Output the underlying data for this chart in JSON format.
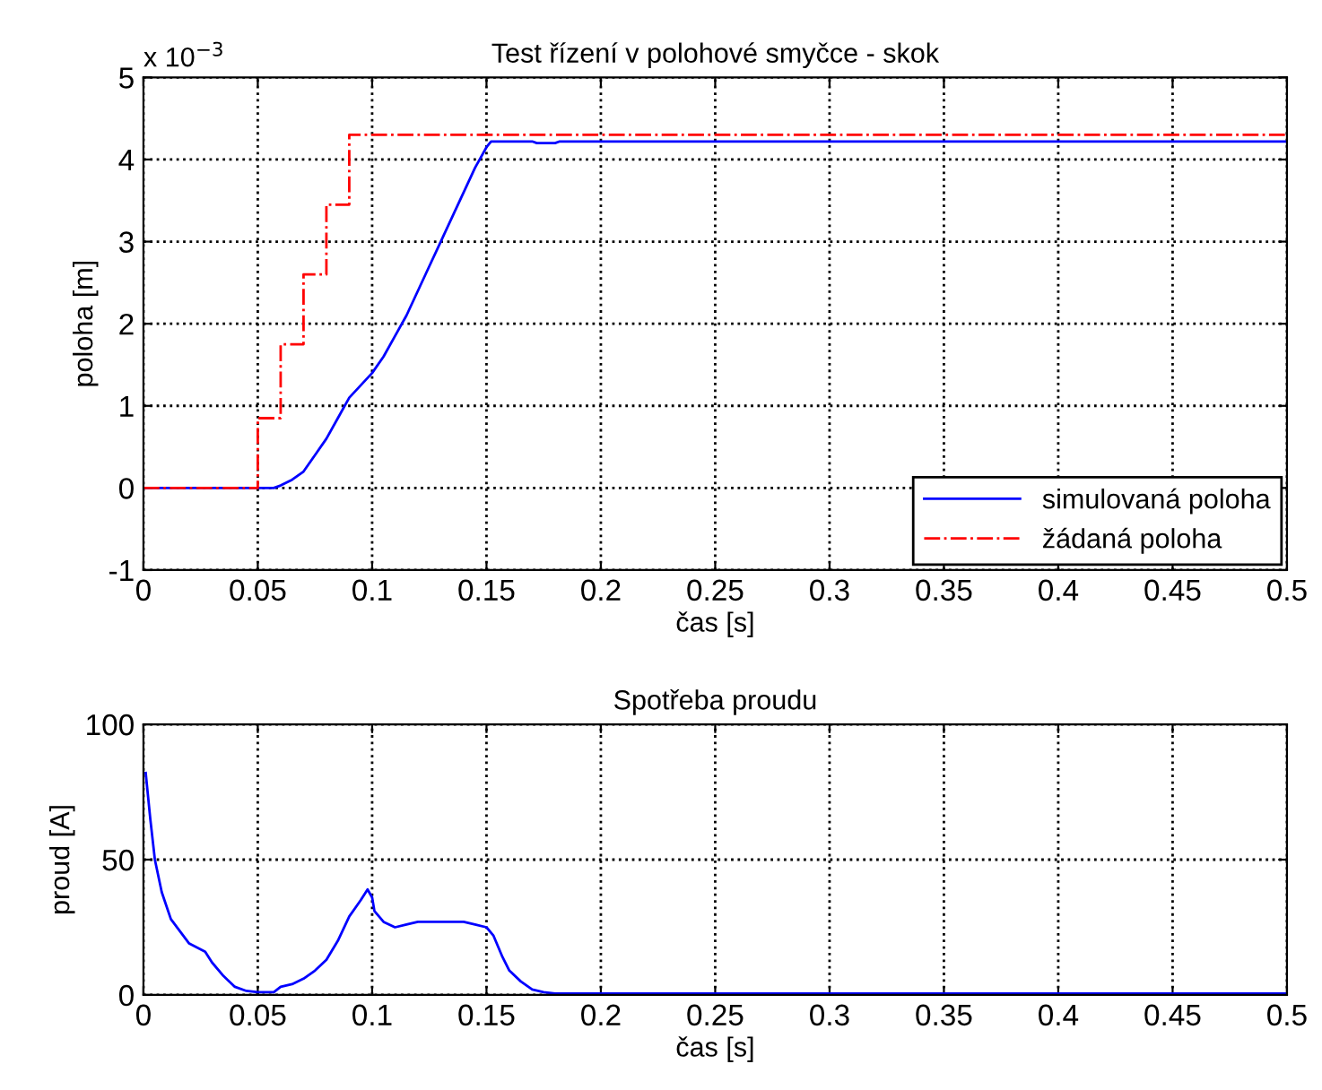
{
  "chart_data": [
    {
      "type": "line",
      "title": "Test řízení v polohové smyčce - skok",
      "xlabel": "čas [s]",
      "ylabel": "poloha [m]",
      "annotations": [
        "x 10$^{−3}$"
      ],
      "xlim": [
        0,
        0.5
      ],
      "ylim": [
        -1,
        5
      ],
      "xticks": [
        0,
        0.05,
        0.1,
        0.15,
        0.2,
        0.25,
        0.3,
        0.35,
        0.4,
        0.45,
        0.5
      ],
      "yticks": [
        -1,
        0,
        1,
        2,
        3,
        4,
        5
      ],
      "grid": true,
      "legend": "bottom right",
      "series": [
        {
          "name": "simulovaná poloha",
          "color": "#0000ff",
          "line_style": "solid",
          "x": [
            0,
            0.057,
            0.06,
            0.065,
            0.07,
            0.075,
            0.08,
            0.085,
            0.09,
            0.095,
            0.1,
            0.105,
            0.11,
            0.115,
            0.12,
            0.125,
            0.13,
            0.135,
            0.14,
            0.145,
            0.15,
            0.152,
            0.17,
            0.172,
            0.18,
            0.182,
            0.5
          ],
          "values": [
            0,
            0,
            0.03,
            0.1,
            0.2,
            0.4,
            0.6,
            0.85,
            1.1,
            1.25,
            1.4,
            1.6,
            1.85,
            2.1,
            2.4,
            2.7,
            3.0,
            3.3,
            3.6,
            3.9,
            4.15,
            4.22,
            4.22,
            4.2,
            4.2,
            4.22,
            4.22
          ]
        },
        {
          "name": "žádaná poloha",
          "type": "step",
          "color": "#ff0000",
          "line_style": "dashdot",
          "x": [
            0,
            0.05,
            0.06,
            0.07,
            0.08,
            0.09,
            0.5
          ],
          "values": [
            0,
            0.85,
            1.75,
            2.6,
            3.45,
            4.3,
            4.3
          ]
        }
      ]
    },
    {
      "type": "line",
      "title": "Spotřeba proudu",
      "xlabel": "čas [s]",
      "ylabel": "proud [A]",
      "xlim": [
        0,
        0.5
      ],
      "ylim": [
        0,
        100
      ],
      "xticks": [
        0,
        0.05,
        0.1,
        0.15,
        0.2,
        0.25,
        0.3,
        0.35,
        0.4,
        0.45,
        0.5
      ],
      "yticks": [
        0,
        50,
        100
      ],
      "grid": true,
      "series": [
        {
          "color": "#0000ff",
          "line_style": "solid",
          "x": [
            0.001,
            0.003,
            0.005,
            0.008,
            0.012,
            0.02,
            0.027,
            0.03,
            0.035,
            0.04,
            0.045,
            0.05,
            0.057,
            0.06,
            0.065,
            0.07,
            0.075,
            0.08,
            0.085,
            0.09,
            0.095,
            0.098,
            0.1,
            0.101,
            0.105,
            0.11,
            0.115,
            0.12,
            0.13,
            0.14,
            0.145,
            0.15,
            0.153,
            0.157,
            0.16,
            0.165,
            0.17,
            0.175,
            0.18,
            0.5
          ],
          "values": [
            82,
            65,
            50,
            38,
            28,
            19,
            16,
            12,
            7,
            3,
            1.5,
            1,
            1,
            3,
            4,
            6,
            9,
            13,
            20,
            29,
            35,
            39,
            36,
            31,
            27,
            25,
            26,
            27,
            27,
            27,
            26,
            25,
            22,
            14,
            9,
            5,
            2,
            1,
            0.5,
            0.5
          ]
        }
      ]
    }
  ]
}
